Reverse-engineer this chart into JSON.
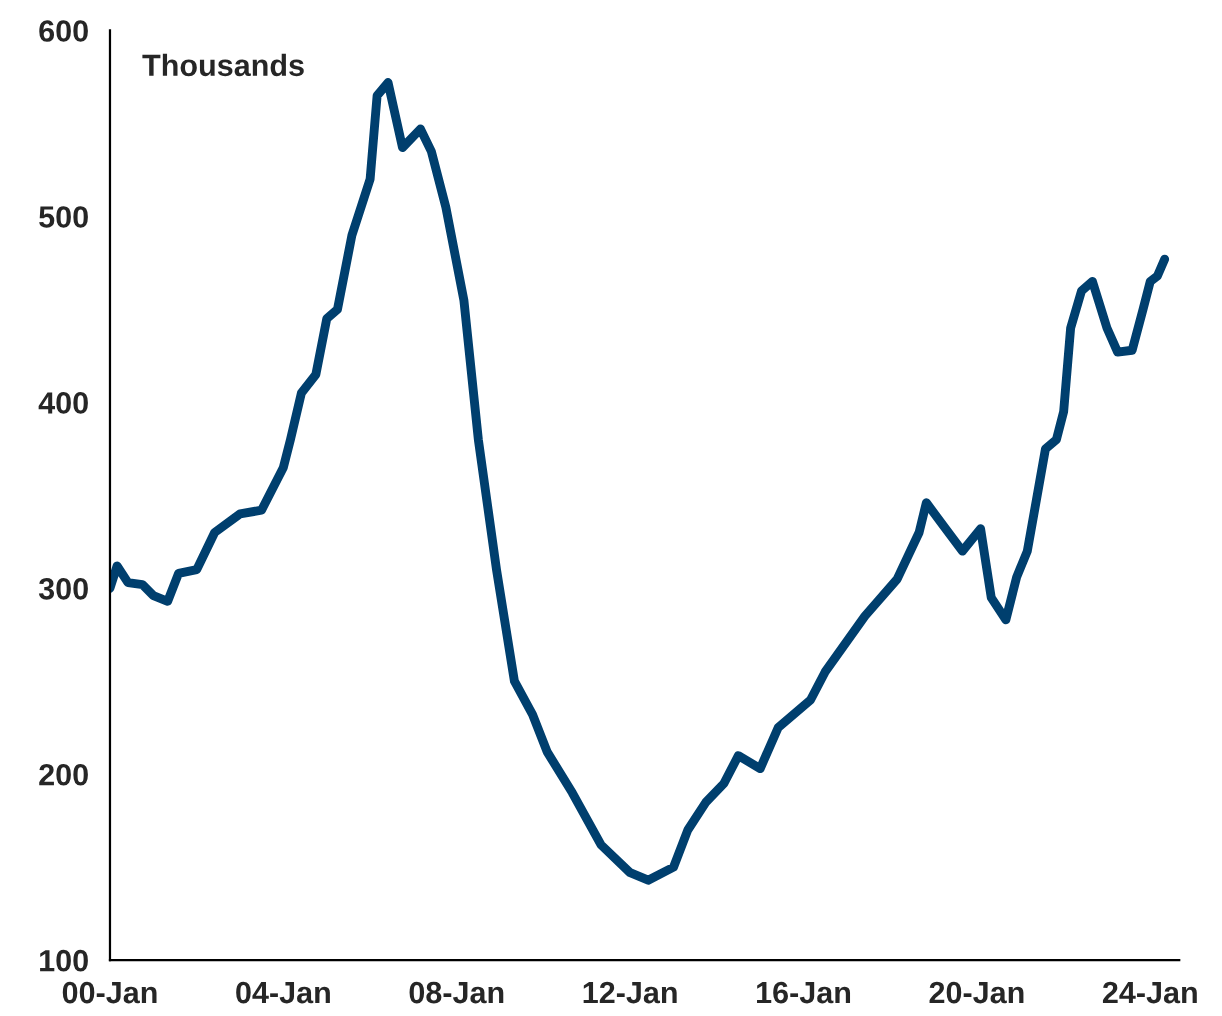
{
  "chart_data": {
    "type": "line",
    "annotations": [
      "Thousands"
    ],
    "series": [
      {
        "color": "#003f6e",
        "x": [
          "2000-01",
          "2000-03",
          "2000-06",
          "2000-10",
          "2001-01",
          "2001-05",
          "2001-08",
          "2002-01",
          "2002-06",
          "2003-01",
          "2003-07",
          "2004-01",
          "2004-03",
          "2004-06",
          "2004-10",
          "2005-01",
          "2005-04",
          "2005-08",
          "2006-01",
          "2006-03",
          "2006-06",
          "2006-10",
          "2007-03",
          "2007-06",
          "2007-10",
          "2008-03",
          "2008-07",
          "2008-12",
          "2009-05",
          "2009-10",
          "2010-02",
          "2010-09",
          "2011-05",
          "2012-01",
          "2012-06",
          "2013-01",
          "2013-05",
          "2013-10",
          "2014-03",
          "2014-07",
          "2015-01",
          "2015-06",
          "2016-03",
          "2016-07",
          "2017-06",
          "2018-03",
          "2018-09",
          "2018-11",
          "2019-04",
          "2019-09",
          "2020-02",
          "2020-05",
          "2020-09",
          "2020-12",
          "2021-03",
          "2021-08",
          "2021-11",
          "2022-01",
          "2022-03",
          "2022-06",
          "2022-09",
          "2023-01",
          "2023-04",
          "2023-08",
          "2023-11",
          "2024-01",
          "2024-03",
          "2024-05"
        ],
        "values": [
          300,
          312,
          303,
          302,
          296,
          293,
          308,
          310,
          330,
          340,
          342,
          365,
          380,
          405,
          415,
          445,
          450,
          490,
          520,
          565,
          572,
          537,
          547,
          535,
          505,
          455,
          380,
          310,
          250,
          232,
          212,
          190,
          162,
          147,
          143,
          150,
          170,
          185,
          195,
          210,
          203,
          225,
          240,
          255,
          285,
          305,
          330,
          346,
          333,
          320,
          332,
          295,
          283,
          306,
          320,
          375,
          380,
          395,
          440,
          460,
          465,
          440,
          427,
          428,
          450,
          465,
          468,
          477
        ]
      }
    ],
    "xlim": [
      "2000-01",
      "2024-09"
    ],
    "xticks": [
      {
        "value": "2000-01",
        "label": "00-Jan"
      },
      {
        "value": "2004-01",
        "label": "04-Jan"
      },
      {
        "value": "2008-01",
        "label": "08-Jan"
      },
      {
        "value": "2012-01",
        "label": "12-Jan"
      },
      {
        "value": "2016-01",
        "label": "16-Jan"
      },
      {
        "value": "2020-01",
        "label": "20-Jan"
      },
      {
        "value": "2024-01",
        "label": "24-Jan"
      }
    ],
    "ylim": [
      100,
      600
    ],
    "yticks": [
      100,
      200,
      300,
      400,
      500,
      600
    ]
  }
}
